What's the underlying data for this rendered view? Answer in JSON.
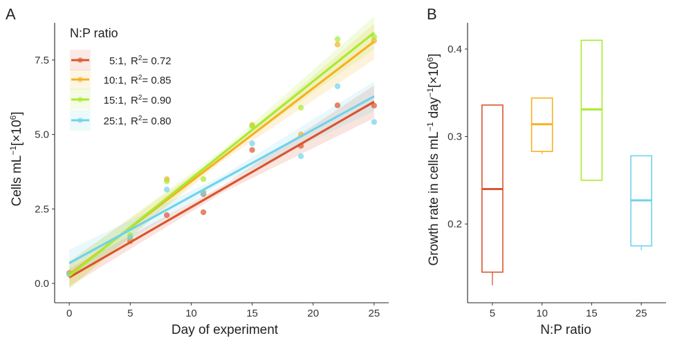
{
  "chart_data": [
    {
      "panel_label": "A",
      "type": "scatter",
      "xlabel": "Day of experiment",
      "ylabel": "Cells mL⁻¹[×10⁶]",
      "xlim": [
        -1.2,
        26.2
      ],
      "ylim": [
        -0.65,
        8.75
      ],
      "xticks": [
        0,
        5,
        10,
        15,
        20,
        25
      ],
      "xtick_labels": [
        "0",
        "5",
        "10",
        "15",
        "20",
        "25"
      ],
      "yticks": [
        0,
        2.5,
        5,
        7.5
      ],
      "ytick_labels": [
        "0.0",
        "2.5",
        "5.0",
        "7.5"
      ],
      "grid": false,
      "legend": {
        "title": "N:P ratio",
        "placement": "top-left",
        "entries": [
          {
            "label": "5:1,",
            "r2": "= 0.72"
          },
          {
            "label": "10:1,",
            "r2": "= 0.85"
          },
          {
            "label": "15:1,",
            "r2": "= 0.90"
          },
          {
            "label": "25:1,",
            "r2": "= 0.80"
          }
        ]
      },
      "series": [
        {
          "name": "5:1",
          "color": "#d9552f",
          "points": [
            [
              0,
              0.35
            ],
            [
              5,
              1.42
            ],
            [
              8,
              2.29
            ],
            [
              11,
              2.39
            ],
            [
              11,
              3.0
            ],
            [
              15,
              4.48
            ],
            [
              19,
              4.62
            ],
            [
              22,
              5.98
            ],
            [
              25,
              5.97
            ]
          ],
          "fit": [
            [
              0,
              0.2
            ],
            [
              25,
              6.1
            ]
          ],
          "band": [
            0.3,
            0.55
          ]
        },
        {
          "name": "10:1",
          "color": "#f6b11f",
          "points": [
            [
              0,
              0.35
            ],
            [
              5,
              1.5
            ],
            [
              8,
              3.5
            ],
            [
              11,
              3.08
            ],
            [
              15,
              5.32
            ],
            [
              19,
              5.0
            ],
            [
              22,
              8.02
            ],
            [
              25,
              8.15
            ]
          ],
          "fit": [
            [
              0,
              0.3
            ],
            [
              25,
              8.12
            ]
          ],
          "band": [
            0.45,
            0.6
          ]
        },
        {
          "name": "15:1",
          "color": "#a9ea2f",
          "points": [
            [
              0,
              0.3
            ],
            [
              5,
              1.62
            ],
            [
              8,
              3.43
            ],
            [
              11,
              3.5
            ],
            [
              15,
              5.28
            ],
            [
              19,
              5.9
            ],
            [
              22,
              8.2
            ],
            [
              25,
              8.28
            ]
          ],
          "fit": [
            [
              0,
              0.25
            ],
            [
              25,
              8.42
            ]
          ],
          "band": [
            0.45,
            0.55
          ]
        },
        {
          "name": "25:1",
          "color": "#6fd3ea",
          "points": [
            [
              0,
              0.32
            ],
            [
              5,
              1.55
            ],
            [
              8,
              3.15
            ],
            [
              11,
              3.02
            ],
            [
              15,
              4.7
            ],
            [
              19,
              4.27
            ],
            [
              22,
              6.62
            ],
            [
              25,
              5.42
            ]
          ],
          "fit": [
            [
              0,
              0.68
            ],
            [
              25,
              6.28
            ]
          ],
          "band": [
            0.45,
            0.5
          ]
        }
      ]
    },
    {
      "panel_label": "B",
      "type": "box",
      "xlabel": "N:P ratio",
      "ylabel": "Growth rate in cells mL⁻¹ day⁻¹[×10⁶]",
      "categories": [
        "5",
        "10",
        "15",
        "25"
      ],
      "ylim": [
        0.11,
        0.43
      ],
      "yticks": [
        0.2,
        0.3,
        0.4
      ],
      "ytick_labels": [
        "0.2",
        "0.3",
        "0.4"
      ],
      "grid": false,
      "boxes": [
        {
          "category": "5",
          "color": "#d9552f",
          "min": 0.13,
          "q1": 0.145,
          "median": 0.24,
          "q3": 0.336,
          "max": 0.336
        },
        {
          "category": "10",
          "color": "#f6b11f",
          "min": 0.28,
          "q1": 0.283,
          "median": 0.314,
          "q3": 0.344,
          "max": 0.344
        },
        {
          "category": "15",
          "color": "#a9ea2f",
          "min": 0.25,
          "q1": 0.25,
          "median": 0.331,
          "q3": 0.41,
          "max": 0.41
        },
        {
          "category": "25",
          "color": "#6fd3ea",
          "min": 0.17,
          "q1": 0.175,
          "median": 0.227,
          "q3": 0.278,
          "max": 0.278
        }
      ]
    }
  ]
}
